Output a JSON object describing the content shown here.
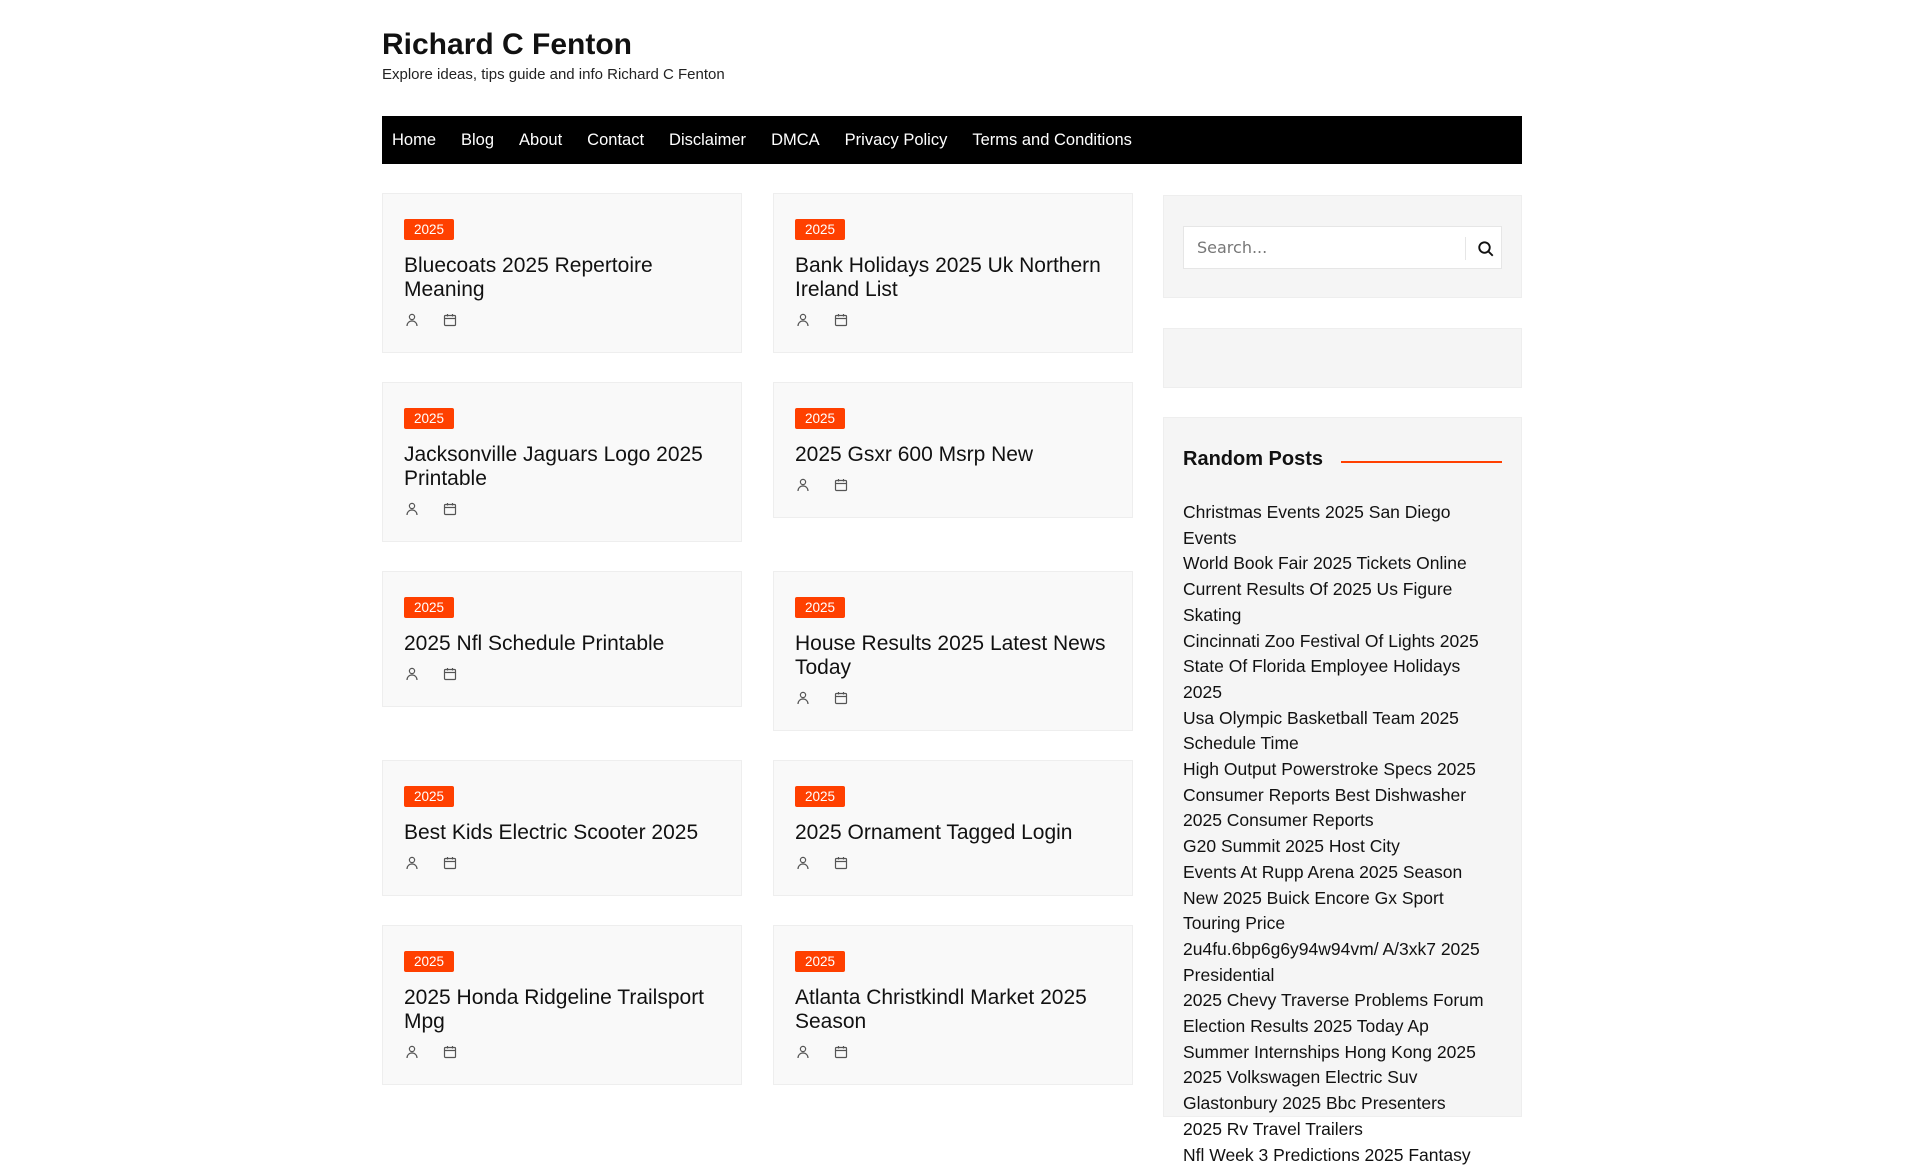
{
  "site": {
    "title": "Richard C Fenton",
    "tagline": "Explore ideas, tips guide and info Richard C Fenton"
  },
  "nav": [
    "Home",
    "Blog",
    "About",
    "Contact",
    "Disclaimer",
    "DMCA",
    "Privacy Policy",
    "Terms and Conditions"
  ],
  "posts": [
    {
      "category": "2025",
      "title": "Bluecoats 2025 Repertoire Meaning"
    },
    {
      "category": "2025",
      "title": "Bank Holidays 2025 Uk Northern Ireland List"
    },
    {
      "category": "2025",
      "title": "Jacksonville Jaguars Logo 2025 Printable"
    },
    {
      "category": "2025",
      "title": "2025 Gsxr 600 Msrp New"
    },
    {
      "category": "2025",
      "title": "2025 Nfl Schedule Printable"
    },
    {
      "category": "2025",
      "title": "House Results 2025 Latest News Today"
    },
    {
      "category": "2025",
      "title": "Best Kids Electric Scooter 2025"
    },
    {
      "category": "2025",
      "title": "2025 Ornament Tagged Login"
    },
    {
      "category": "2025",
      "title": "2025 Honda Ridgeline Trailsport Mpg"
    },
    {
      "category": "2025",
      "title": "Atlanta Christkindl Market 2025 Season"
    }
  ],
  "search": {
    "placeholder": "Search..."
  },
  "random": {
    "heading": "Random Posts",
    "items": [
      "Christmas Events 2025 San Diego Events",
      "World Book Fair 2025 Tickets Online",
      "Current Results Of 2025 Us Figure Skating",
      "Cincinnati Zoo Festival Of Lights 2025",
      "State Of Florida Employee Holidays 2025",
      "Usa Olympic Basketball Team 2025 Schedule Time",
      "High Output Powerstroke Specs 2025",
      "Consumer Reports Best Dishwasher 2025 Consumer Reports",
      "G20 Summit 2025 Host City",
      "Events At Rupp Arena 2025 Season",
      "New 2025 Buick Encore Gx Sport Touring Price",
      "2u4fu.6bp6g6y94w94vm/ A/3xk7 2025 Presidential",
      "2025 Chevy Traverse Problems Forum",
      "Election Results 2025 Today Ap",
      "Summer Internships Hong Kong 2025",
      "2025 Volkswagen Electric Suv",
      "Glastonbury 2025 Bbc Presenters",
      "2025 Rv Travel Trailers",
      "Nfl Week 3 Predictions 2025 Fantasy"
    ]
  },
  "colors": {
    "accent": "#ff4000",
    "nav_bg": "#000000",
    "card_bg": "#f9f9f9",
    "sidebar_bg": "#f5f5f5"
  }
}
